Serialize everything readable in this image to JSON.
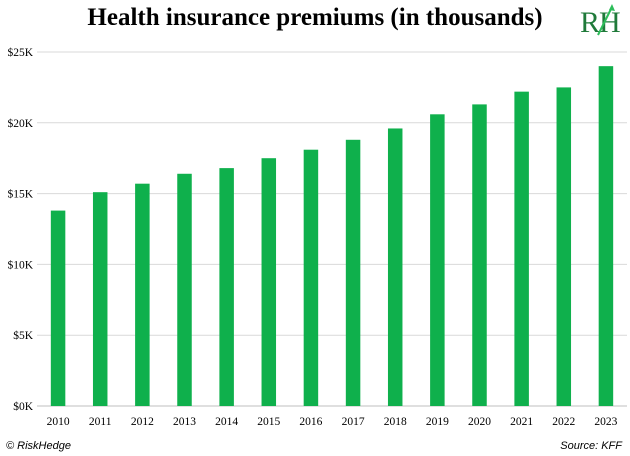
{
  "header": {
    "title": "Health insurance premiums (in thousands)"
  },
  "logo": {
    "text": "RH",
    "colors": {
      "letters": "#1f7a3a",
      "accent": "#2dbd5a"
    }
  },
  "footer": {
    "left": "© RiskHedge",
    "right": "Source: KFF"
  },
  "colors": {
    "bar": "#0fb04c",
    "grid": "#d9d9d9",
    "axis": "#bfbfbf"
  },
  "chart_data": {
    "type": "bar",
    "title": "Health insurance premiums (in thousands)",
    "categories": [
      "2010",
      "2011",
      "2012",
      "2013",
      "2014",
      "2015",
      "2016",
      "2017",
      "2018",
      "2019",
      "2020",
      "2021",
      "2022",
      "2023"
    ],
    "values": [
      13.8,
      15.1,
      15.7,
      16.4,
      16.8,
      17.5,
      18.1,
      18.8,
      19.6,
      20.6,
      21.3,
      22.2,
      22.5,
      24.0
    ],
    "ylim": [
      0,
      25
    ],
    "yticks": [
      0,
      5,
      10,
      15,
      20,
      25
    ],
    "ytick_labels": [
      "$0K",
      "$5K",
      "$10K",
      "$15K",
      "$20K",
      "$25K"
    ],
    "xlabel": "",
    "ylabel": "",
    "grid": true,
    "legend": "none"
  }
}
